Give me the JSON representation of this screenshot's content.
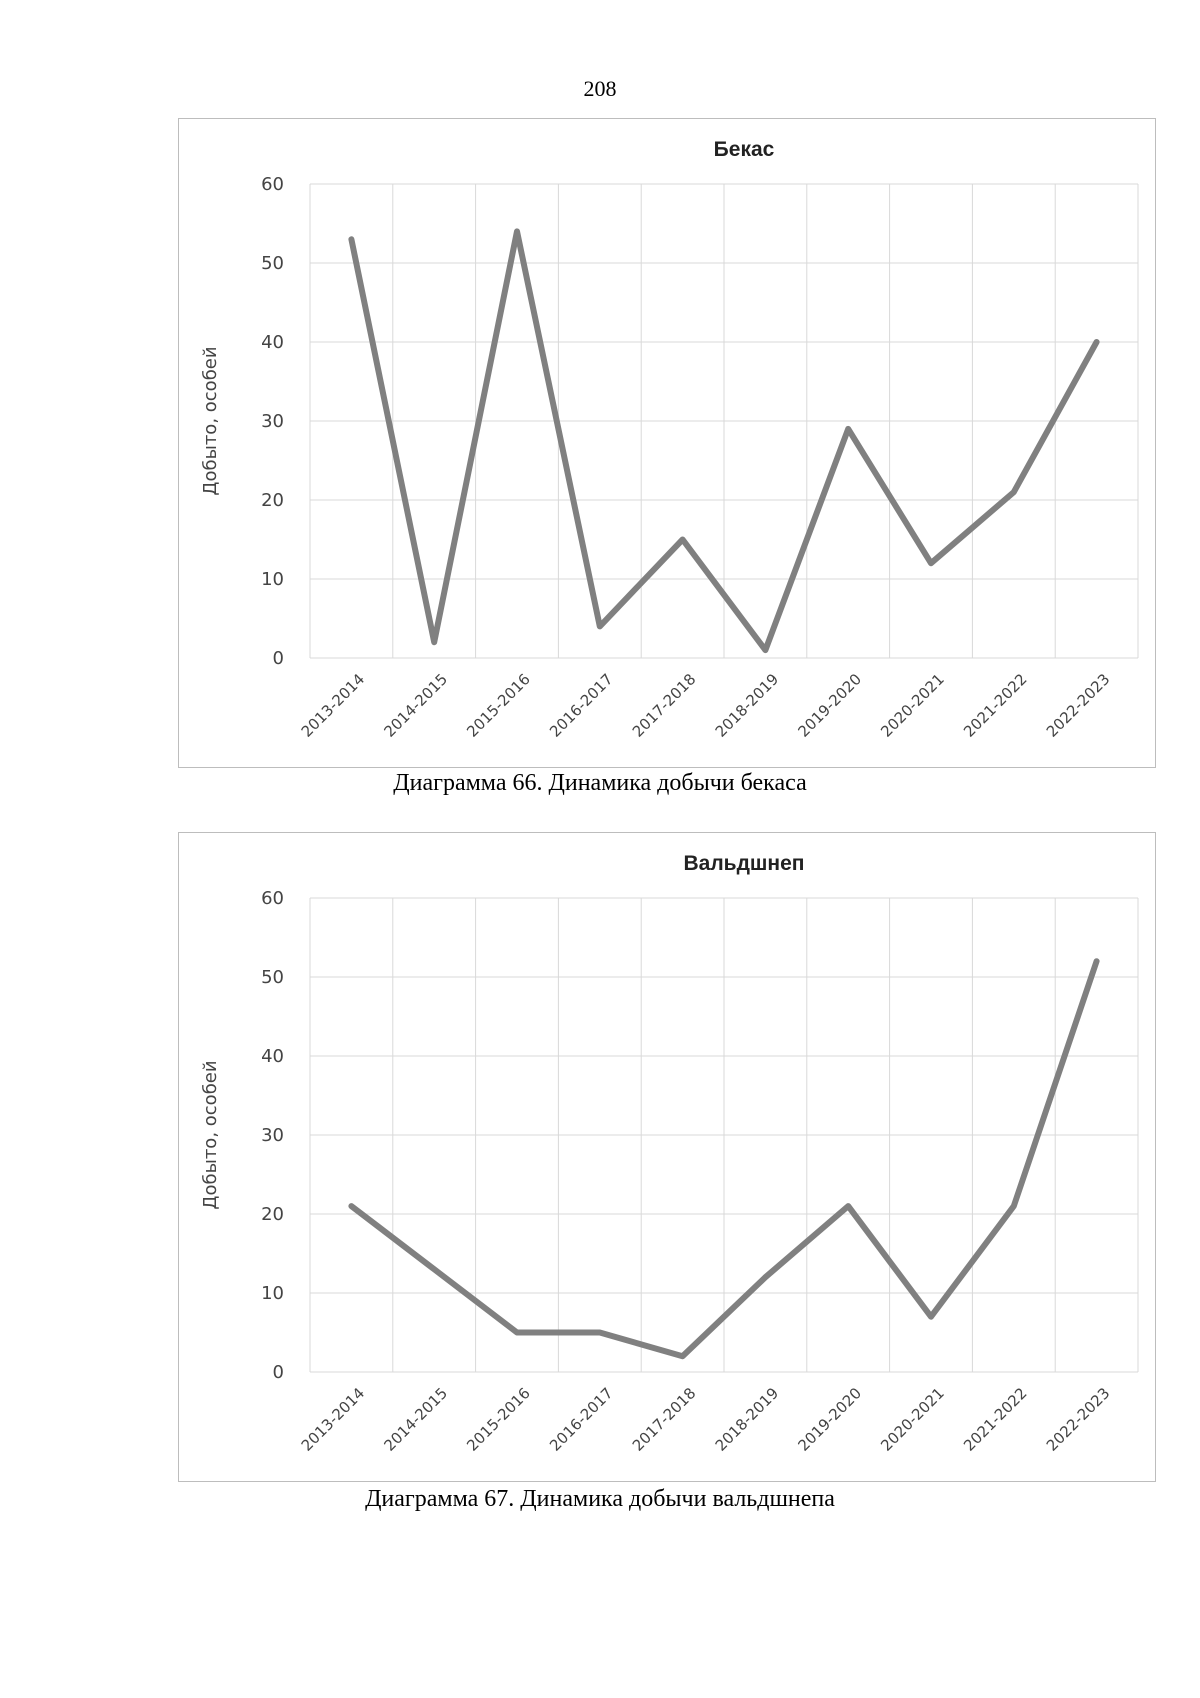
{
  "page": {
    "number": "208"
  },
  "charts": [
    {
      "caption": "Диаграмма 66. Динамика добычи бекаса"
    },
    {
      "caption": "Диаграмма 67. Динамика добычи вальдшнепа"
    }
  ],
  "colors": {
    "line": "#808080",
    "grid": "#d9d9d9",
    "frame": "#bdbdbd"
  },
  "chart_data": [
    {
      "type": "line",
      "title": "Бекас",
      "xlabel": "",
      "ylabel": "Добыто, особей",
      "categories": [
        "2013-2014",
        "2014-2015",
        "2015-2016",
        "2016-2017",
        "2017-2018",
        "2018-2019",
        "2019-2020",
        "2020-2021",
        "2021-2022",
        "2022-2023"
      ],
      "series": [
        {
          "name": "Бекас",
          "values": [
            53,
            2,
            54,
            4,
            15,
            1,
            29,
            12,
            21,
            40
          ]
        }
      ],
      "ylim": [
        0,
        60
      ],
      "yticks": [
        0,
        10,
        20,
        30,
        40,
        50,
        60
      ],
      "grid": true
    },
    {
      "type": "line",
      "title": "Вальдшнеп",
      "xlabel": "",
      "ylabel": "Добыто, особей",
      "categories": [
        "2013-2014",
        "2014-2015",
        "2015-2016",
        "2016-2017",
        "2017-2018",
        "2018-2019",
        "2019-2020",
        "2020-2021",
        "2021-2022",
        "2022-2023"
      ],
      "series": [
        {
          "name": "Вальдшнеп",
          "values": [
            21,
            13,
            5,
            5,
            2,
            12,
            21,
            7,
            21,
            52
          ]
        }
      ],
      "ylim": [
        0,
        60
      ],
      "yticks": [
        0,
        10,
        20,
        30,
        40,
        50,
        60
      ],
      "grid": true
    }
  ]
}
